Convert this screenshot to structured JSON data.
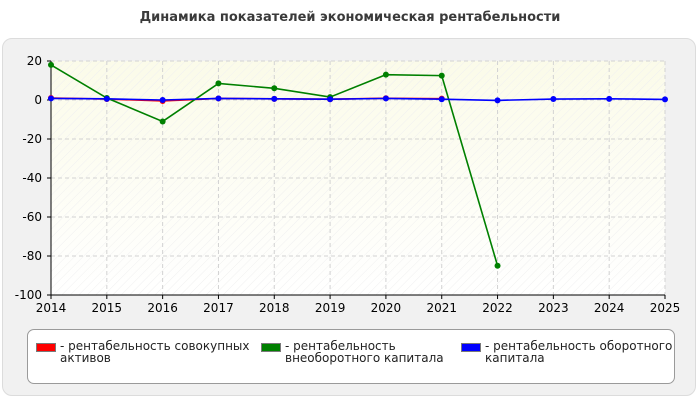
{
  "chart_data": {
    "type": "line",
    "title": "Динамика показателей экономическая рентабельности",
    "xlabel": "",
    "ylabel": "",
    "x": [
      2014,
      2015,
      2016,
      2017,
      2018,
      2019,
      2020,
      2021,
      2022,
      2023,
      2024,
      2025
    ],
    "xlim": [
      2014,
      2025
    ],
    "ylim": [
      -100,
      20
    ],
    "yticks": [
      20,
      0,
      -20,
      -40,
      -60,
      -80,
      -100
    ],
    "grid": true,
    "legend_position": "bottom",
    "series": [
      {
        "name": "рентабельность совокупных активов",
        "color": "#ff0000",
        "values": [
          1,
          0.5,
          -0.5,
          0.8,
          0.6,
          0.4,
          0.9,
          0.7,
          null,
          null,
          null,
          null
        ]
      },
      {
        "name": "рентабельность внеоборотного капитала",
        "color": "#008000",
        "values": [
          18,
          1,
          -11,
          8.5,
          6,
          1.5,
          13,
          12.5,
          -85,
          null,
          null,
          null
        ]
      },
      {
        "name": "рентабельность оборотного капитала",
        "color": "#0000ff",
        "values": [
          0.8,
          0.6,
          0,
          0.8,
          0.6,
          0.4,
          0.8,
          0.4,
          -0.2,
          0.5,
          0.6,
          0.3
        ]
      }
    ]
  }
}
